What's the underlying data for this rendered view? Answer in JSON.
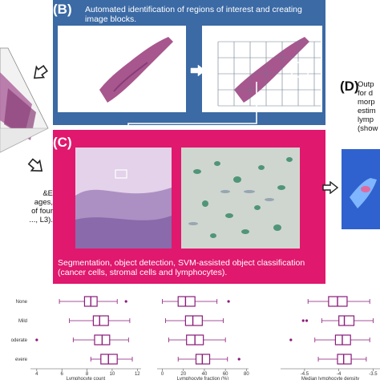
{
  "panel_b": {
    "letter": "(B)",
    "caption_line1": "Automated identification of regions of interest and creating",
    "caption_line2": "image blocks."
  },
  "panel_c": {
    "letter": "(C)",
    "caption_line1": "Segmentation, object detection, SVM-assisted object classification",
    "caption_line2": "(cancer cells, stromal cells and lymphocytes)."
  },
  "panel_d": {
    "letter": "(D)",
    "lines": [
      "Outp",
      "for d",
      "morp",
      "estim",
      "lymp",
      "(show"
    ]
  },
  "panel_a_partial": {
    "lines": [
      "&E",
      "ages,",
      "of four",
      "..., L3)."
    ]
  },
  "plots": {
    "categories": [
      "None",
      "Mild",
      "Moderate",
      "Severe"
    ],
    "category_display": [
      "None",
      "Mild",
      "oderate",
      "evere"
    ],
    "plot1": {
      "xlabel": "Lymphocyte count",
      "ticks": [
        "4",
        "6",
        "8",
        "10",
        "12"
      ],
      "boxes": [
        {
          "q1": 7.8,
          "med": 8.3,
          "q3": 8.8,
          "lo": 5.8,
          "hi": 10.4,
          "out": [
            11.1
          ]
        },
        {
          "q1": 8.5,
          "med": 9.0,
          "q3": 9.7,
          "lo": 6.6,
          "hi": 11.4,
          "out": []
        },
        {
          "q1": 8.6,
          "med": 9.2,
          "q3": 9.8,
          "lo": 6.9,
          "hi": 11.3,
          "out": [
            4.0
          ]
        },
        {
          "q1": 9.1,
          "med": 9.7,
          "q3": 10.4,
          "lo": 8.3,
          "hi": 11.6,
          "out": []
        }
      ]
    },
    "plot2": {
      "xlabel": "Lymphocyte fraction (%)",
      "ticks": [
        "0",
        "20",
        "40",
        "60",
        "80"
      ],
      "boxes": [
        {
          "q1": 15,
          "med": 22,
          "q3": 31,
          "lo": 0,
          "hi": 52,
          "out": [
            63
          ]
        },
        {
          "q1": 22,
          "med": 29,
          "q3": 38,
          "lo": 3,
          "hi": 58,
          "out": []
        },
        {
          "q1": 23,
          "med": 31,
          "q3": 39,
          "lo": 6,
          "hi": 60,
          "out": []
        },
        {
          "q1": 32,
          "med": 38,
          "q3": 45,
          "lo": 15,
          "hi": 62,
          "out": [
            73
          ]
        }
      ]
    },
    "plot3": {
      "xlabel": "Median lymphocyte density",
      "ticks": [
        "-4.5",
        "-4",
        "-3.5"
      ],
      "boxes": [
        {
          "q1": -4.15,
          "med": -4.02,
          "q3": -3.88,
          "lo": -4.45,
          "hi": -3.55,
          "out": []
        },
        {
          "q1": -4.0,
          "med": -3.92,
          "q3": -3.78,
          "lo": -4.25,
          "hi": -3.5,
          "out": [
            -4.52,
            -4.47
          ]
        },
        {
          "q1": -4.05,
          "med": -3.95,
          "q3": -3.83,
          "lo": -4.35,
          "hi": -3.55,
          "out": [
            -4.7
          ]
        },
        {
          "q1": -4.02,
          "med": -3.93,
          "q3": -3.82,
          "lo": -4.3,
          "hi": -3.6,
          "out": []
        }
      ]
    }
  },
  "colors": {
    "panel_b_bg": "#3b6aa5",
    "panel_c_bg": "#e0186e",
    "box_color": "#8a1a7a"
  }
}
